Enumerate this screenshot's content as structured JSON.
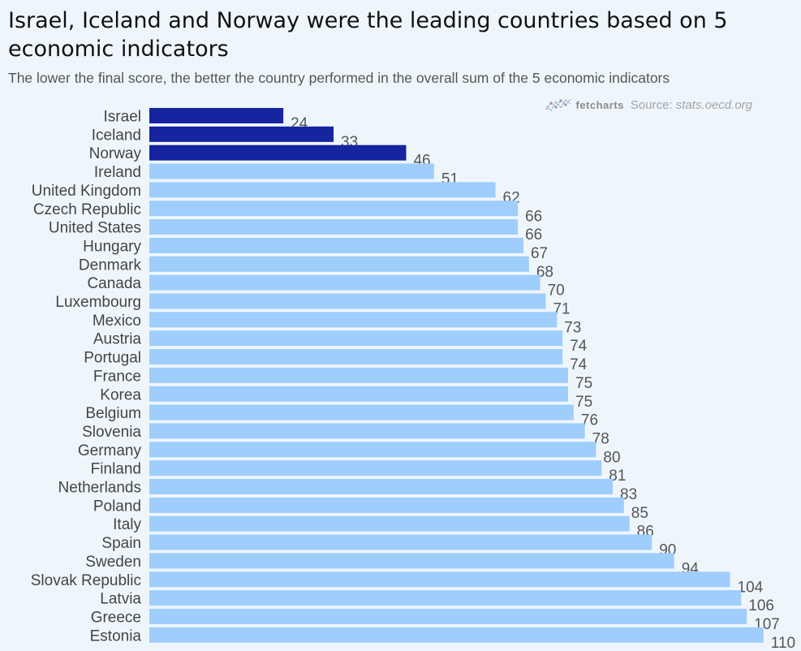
{
  "header": {
    "title": "Israel, Iceland and Norway were the leading countries based on 5 economic indicators",
    "subtitle": "The lower the final score, the better the country performed in the overall sum of the 5 economic indicators",
    "brand": "fetcharts",
    "source_prefix": "Source: ",
    "source_site": "stats.oecd.org"
  },
  "colors": {
    "highlight": "#1624a0",
    "default": "#9fcdfc",
    "background": "#eef6fc"
  },
  "chart_data": {
    "type": "bar",
    "orientation": "horizontal",
    "title": "Israel, Iceland and Norway were the leading countries based on 5 economic indicators",
    "subtitle": "The lower the final score, the better the country performed in the overall sum of the 5 economic indicators",
    "categories": [
      "Israel",
      "Iceland",
      "Norway",
      "Ireland",
      "United Kingdom",
      "Czech Republic",
      "United States",
      "Hungary",
      "Denmark",
      "Canada",
      "Luxembourg",
      "Mexico",
      "Austria",
      "Portugal",
      "France",
      "Korea",
      "Belgium",
      "Slovenia",
      "Germany",
      "Finland",
      "Netherlands",
      "Poland",
      "Italy",
      "Spain",
      "Sweden",
      "Slovak Republic",
      "Latvia",
      "Greece",
      "Estonia"
    ],
    "values": [
      24,
      33,
      46,
      51,
      62,
      66,
      66,
      67,
      68,
      70,
      71,
      73,
      74,
      74,
      75,
      75,
      76,
      78,
      80,
      81,
      83,
      85,
      86,
      90,
      94,
      104,
      106,
      107,
      110
    ],
    "highlighted": [
      "Israel",
      "Iceland",
      "Norway"
    ],
    "grid": false,
    "legend": "none"
  }
}
